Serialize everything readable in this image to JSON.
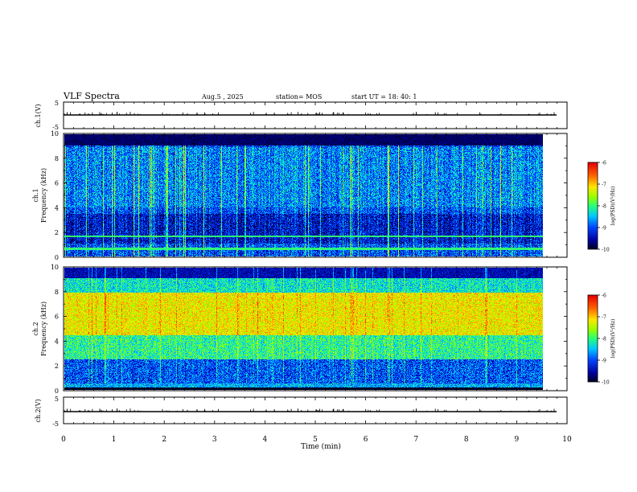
{
  "header": {
    "title": "VLF Spectra",
    "date": "Aug.5 , 2025",
    "station": "station= MOS",
    "start": "start UT = 18: 40: 1"
  },
  "chart_data": [
    {
      "type": "line",
      "name": "channel-1-waveform",
      "ylabel": "ch.1(V)",
      "ylim": [
        -5,
        5
      ],
      "yticks": [
        "5",
        "-5"
      ],
      "baseline_v": 0
    },
    {
      "type": "heatmap",
      "name": "channel-1-spectrogram",
      "ylabel_line1": "ch.1",
      "ylabel_line2": "Frequency (kHz)",
      "ylim": [
        0,
        10
      ],
      "yticks": [
        "0",
        "2",
        "4",
        "6",
        "8",
        "10"
      ],
      "data_end_min": 9.83,
      "colorbar": {
        "label": "log(PSD)(V²/Hz)",
        "range": [
          -10,
          -6
        ],
        "ticks": [
          "-6",
          "-7",
          "-8",
          "-9",
          "-10"
        ]
      },
      "dominant_log_psd": -8.8,
      "lines_khz": [
        0.6,
        1.6
      ]
    },
    {
      "type": "heatmap",
      "name": "channel-2-spectrogram",
      "ylabel_line1": "ch.2",
      "ylabel_line2": "Frequency (kHz)",
      "ylim": [
        0,
        10
      ],
      "yticks": [
        "0",
        "2",
        "4",
        "6",
        "8",
        "10"
      ],
      "data_end_min": 9.83,
      "colorbar": {
        "label": "log(PSD)(V²/Hz)",
        "range": [
          -10,
          -6
        ],
        "ticks": [
          "-6",
          "-7",
          "-8",
          "-9",
          "-10"
        ]
      },
      "peak_band_khz": [
        4.5,
        8
      ],
      "peak_log_psd": -7
    },
    {
      "type": "line",
      "name": "channel-2-waveform",
      "ylabel": "ch.2(V)",
      "ylim": [
        -5,
        5
      ],
      "yticks": [
        "5",
        "-5"
      ],
      "baseline_v": 0
    }
  ],
  "xaxis": {
    "xlabel": "Time (min)",
    "xlim": [
      0,
      10
    ],
    "ticks": [
      "0",
      "1",
      "2",
      "3",
      "4",
      "5",
      "6",
      "7",
      "8",
      "9",
      "10"
    ]
  }
}
